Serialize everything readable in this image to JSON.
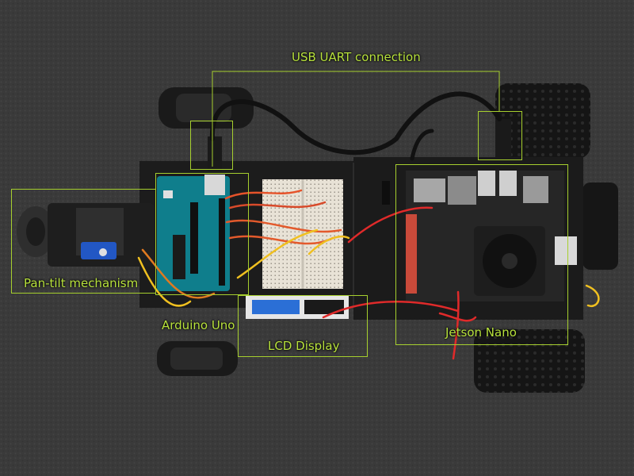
{
  "annotations": {
    "usb_uart": "USB UART connection",
    "pan_tilt": "Pan-tilt mechanism",
    "arduino": "Arduino Uno",
    "lcd": "LCD Display",
    "jetson": "Jetson Nano"
  },
  "colors": {
    "annotation": "#b8e23c",
    "chassis": "#1c1c1c",
    "carpet": "#3b3b3b",
    "arduino_board": "#0f7e8c",
    "jetson_board": "#222222"
  }
}
